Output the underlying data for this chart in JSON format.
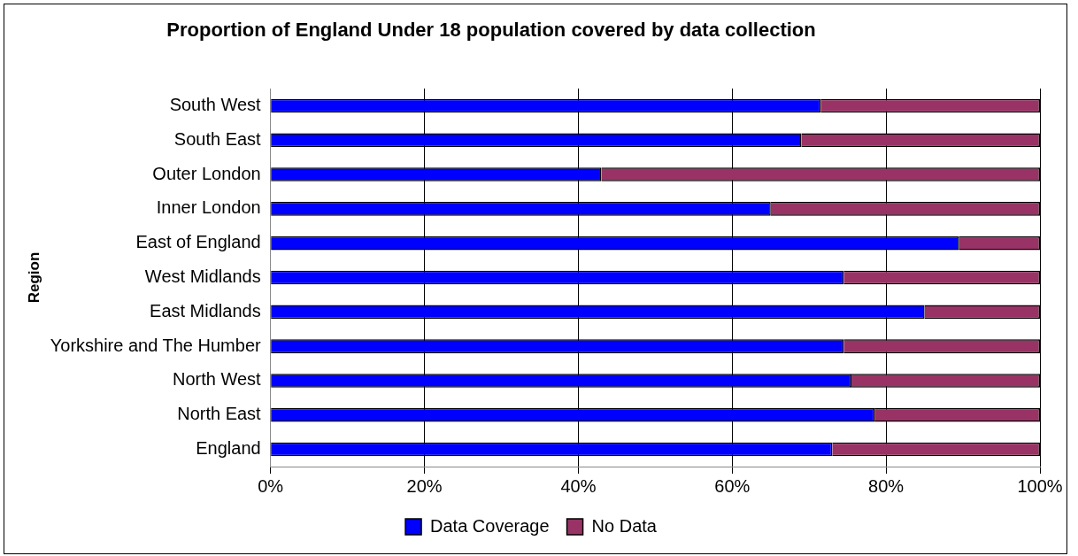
{
  "chart_data": {
    "type": "bar",
    "orientation": "horizontal",
    "stacked": true,
    "title": "Proportion of England Under 18 population covered by data collection",
    "ylabel": "Region",
    "categories": [
      "South West",
      "South East",
      "Outer London",
      "Inner London",
      "East of England",
      "West Midlands",
      "East Midlands",
      "Yorkshire and The Humber",
      "North West",
      "North East",
      "England"
    ],
    "series": [
      {
        "name": "Data Coverage",
        "color": "#0000ff",
        "values": [
          71.5,
          69,
          43,
          65,
          89.5,
          74.5,
          85,
          74.5,
          75.5,
          78.5,
          73
        ]
      },
      {
        "name": "No Data",
        "color": "#993366",
        "values": [
          28.5,
          31,
          57,
          35,
          10.5,
          25.5,
          15,
          25.5,
          24.5,
          21.5,
          27
        ]
      }
    ],
    "xlim": [
      0,
      100
    ],
    "xticks": [
      {
        "value": 0,
        "label": "0%"
      },
      {
        "value": 20,
        "label": "20%"
      },
      {
        "value": 40,
        "label": "40%"
      },
      {
        "value": 60,
        "label": "60%"
      },
      {
        "value": 80,
        "label": "80%"
      },
      {
        "value": 100,
        "label": "100%"
      }
    ],
    "grid": "x",
    "legend": "bottom"
  }
}
